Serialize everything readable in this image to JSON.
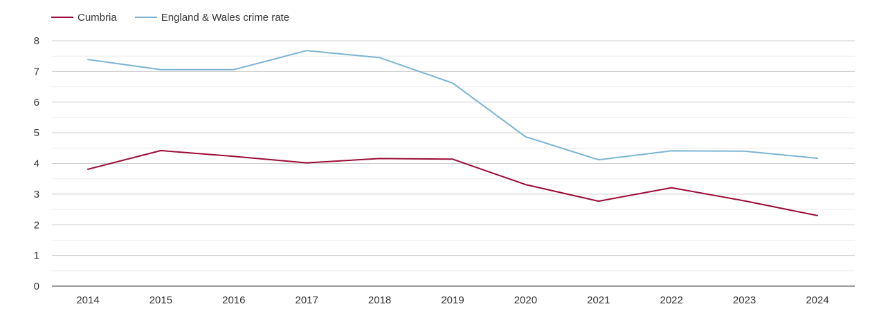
{
  "chart_data": {
    "type": "line",
    "title": "",
    "xlabel": "",
    "ylabel": "",
    "categories": [
      "2014",
      "2015",
      "2016",
      "2017",
      "2018",
      "2019",
      "2020",
      "2021",
      "2022",
      "2023",
      "2024"
    ],
    "ylim": [
      0,
      8
    ],
    "yticks": [
      0,
      1,
      2,
      3,
      4,
      5,
      6,
      7,
      8
    ],
    "grid": true,
    "legend_position": "top-left",
    "series": [
      {
        "name": "Cumbria",
        "color": "#9a0a34",
        "values": [
          3.81,
          4.42,
          4.23,
          4.02,
          4.16,
          4.14,
          3.31,
          2.77,
          3.21,
          2.78,
          2.3
        ]
      },
      {
        "name": "England & Wales crime rate",
        "color": "#7ab4d2",
        "values": [
          7.39,
          7.06,
          7.06,
          7.68,
          7.45,
          6.62,
          4.87,
          4.12,
          4.41,
          4.4,
          4.17
        ]
      }
    ]
  }
}
